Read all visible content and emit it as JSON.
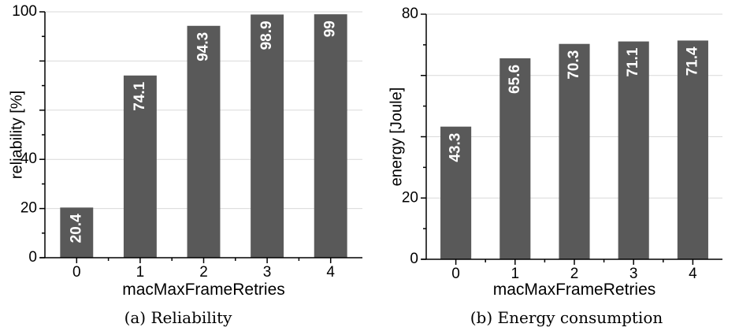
{
  "chart_data": [
    {
      "type": "bar",
      "categories": [
        "0",
        "1",
        "2",
        "3",
        "4"
      ],
      "values": [
        20.4,
        74.1,
        94.3,
        98.9,
        99
      ],
      "value_labels": [
        "20.4",
        "74.1",
        "94.3",
        "98.9",
        "99"
      ],
      "xlabel": "macMaxFrameRetries",
      "ylabel": "reliability [%]",
      "ylim": [
        0,
        100
      ],
      "y_ticks": [
        0,
        20,
        40,
        60,
        80,
        100
      ],
      "y_tick_labels": [
        "0",
        "20",
        "40",
        "",
        "",
        "100"
      ],
      "grid": true,
      "caption": "(a) Reliability",
      "bar_color": "#595959"
    },
    {
      "type": "bar",
      "categories": [
        "0",
        "1",
        "2",
        "3",
        "4"
      ],
      "values": [
        43.3,
        65.6,
        70.3,
        71.1,
        71.4
      ],
      "value_labels": [
        "43.3",
        "65.6",
        "70.3",
        "71.1",
        "71.4"
      ],
      "xlabel": "macMaxFrameRetries",
      "ylabel": "energy [Joule]",
      "ylim": [
        0,
        80
      ],
      "y_ticks": [
        0,
        20,
        40,
        60,
        80
      ],
      "y_tick_labels": [
        "0",
        "20",
        "",
        "",
        "80"
      ],
      "grid": true,
      "caption": "(b) Energy consumption",
      "bar_color": "#595959"
    }
  ]
}
